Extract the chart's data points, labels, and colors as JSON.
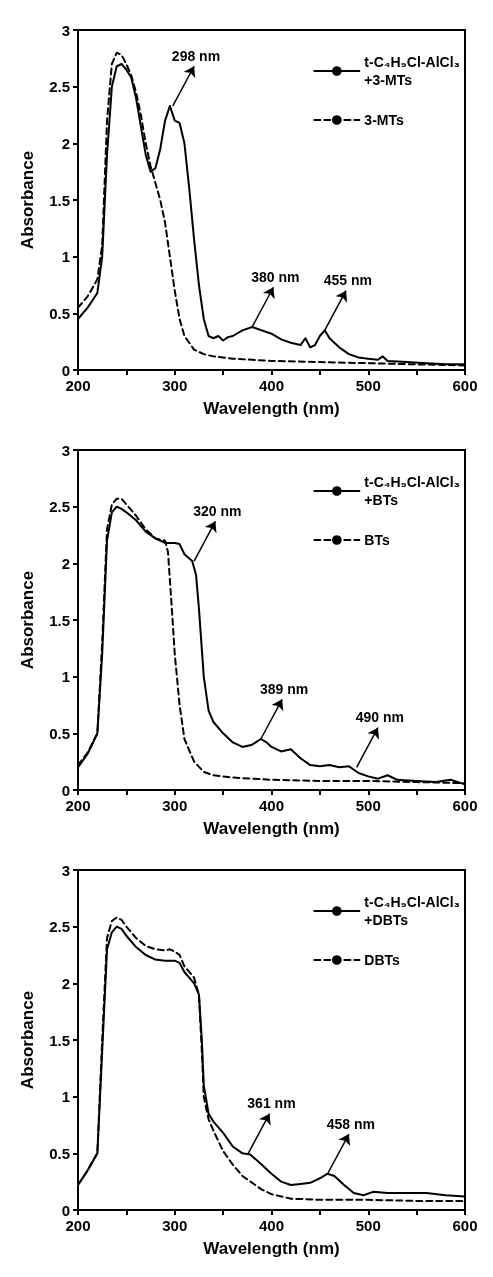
{
  "chart_data": [
    {
      "type": "line",
      "xlabel": "Wavelength (nm)",
      "ylabel": "Absorbance",
      "xlim": [
        200,
        600
      ],
      "ylim": [
        0,
        3
      ],
      "xticks": [
        200,
        {
          "value": 250,
          "label": null
        },
        300,
        {
          "value": 350,
          "label": null
        },
        400,
        {
          "value": 450,
          "label": null
        },
        500,
        {
          "value": 550,
          "label": null
        },
        600
      ],
      "yticks": [
        0,
        0.5,
        1,
        1.5,
        2,
        2.5,
        3
      ],
      "grid": false,
      "legend": "top right",
      "marker": "none",
      "series": [
        {
          "name": "t-C₄H₉Cl-AlCl₃ +3-MTs",
          "color": "#000000",
          "line_style": "solid",
          "x": [
            200,
            210,
            220,
            225,
            230,
            235,
            240,
            245,
            250,
            255,
            260,
            265,
            270,
            275,
            280,
            285,
            290,
            295,
            300,
            305,
            310,
            315,
            320,
            325,
            330,
            335,
            340,
            345,
            350,
            355,
            360,
            370,
            380,
            390,
            400,
            410,
            420,
            430,
            435,
            440,
            445,
            450,
            455,
            460,
            470,
            480,
            490,
            500,
            510,
            515,
            520,
            540,
            560,
            580,
            600
          ],
          "values": [
            0.45,
            0.55,
            0.68,
            1.0,
            1.9,
            2.5,
            2.68,
            2.7,
            2.65,
            2.58,
            2.4,
            2.15,
            1.9,
            1.75,
            1.78,
            1.95,
            2.2,
            2.33,
            2.2,
            2.18,
            2.0,
            1.6,
            1.15,
            0.75,
            0.45,
            0.3,
            0.28,
            0.3,
            0.26,
            0.29,
            0.3,
            0.35,
            0.38,
            0.35,
            0.32,
            0.27,
            0.24,
            0.22,
            0.28,
            0.2,
            0.22,
            0.3,
            0.35,
            0.28,
            0.2,
            0.14,
            0.11,
            0.1,
            0.09,
            0.12,
            0.08,
            0.07,
            0.06,
            0.05,
            0.05
          ]
        },
        {
          "name": "3-MTs",
          "color": "#000000",
          "line_style": "dashed",
          "x": [
            200,
            210,
            220,
            225,
            230,
            235,
            240,
            245,
            250,
            255,
            260,
            265,
            270,
            275,
            280,
            285,
            290,
            295,
            300,
            305,
            310,
            320,
            330,
            340,
            360,
            380,
            400,
            450,
            500,
            550,
            600
          ],
          "values": [
            0.55,
            0.65,
            0.8,
            1.1,
            2.2,
            2.7,
            2.8,
            2.78,
            2.7,
            2.6,
            2.45,
            2.25,
            2.0,
            1.8,
            1.65,
            1.5,
            1.3,
            1.0,
            0.7,
            0.45,
            0.3,
            0.18,
            0.14,
            0.12,
            0.1,
            0.09,
            0.08,
            0.07,
            0.06,
            0.05,
            0.04
          ]
        }
      ],
      "annotations": [
        {
          "text": "298 nm",
          "x": 298,
          "y": 2.33
        },
        {
          "text": "380 nm",
          "x": 380,
          "y": 0.38
        },
        {
          "text": "455 nm",
          "x": 455,
          "y": 0.35
        }
      ]
    },
    {
      "type": "line",
      "xlabel": "Wavelength (nm)",
      "ylabel": "Absorbance",
      "xlim": [
        200,
        600
      ],
      "ylim": [
        0,
        3
      ],
      "xticks": [
        200,
        {
          "value": 250,
          "label": null
        },
        300,
        {
          "value": 350,
          "label": null
        },
        400,
        {
          "value": 450,
          "label": null
        },
        500,
        {
          "value": 550,
          "label": null
        },
        600
      ],
      "yticks": [
        0,
        0.5,
        1,
        1.5,
        2,
        2.5,
        3
      ],
      "grid": false,
      "legend": "top right",
      "marker": "none",
      "series": [
        {
          "name": "t-C₄H₉Cl-AlCl₃ +BTs",
          "color": "#000000",
          "line_style": "solid",
          "x": [
            200,
            210,
            220,
            225,
            230,
            235,
            240,
            245,
            250,
            260,
            270,
            280,
            290,
            300,
            305,
            310,
            318,
            322,
            325,
            330,
            335,
            340,
            350,
            360,
            370,
            380,
            389,
            395,
            400,
            410,
            420,
            430,
            440,
            450,
            460,
            470,
            480,
            490,
            500,
            510,
            520,
            530,
            550,
            570,
            585,
            600
          ],
          "values": [
            0.2,
            0.32,
            0.5,
            1.2,
            2.2,
            2.45,
            2.5,
            2.48,
            2.45,
            2.38,
            2.28,
            2.22,
            2.18,
            2.18,
            2.17,
            2.08,
            2.02,
            1.9,
            1.6,
            1.0,
            0.7,
            0.6,
            0.5,
            0.42,
            0.38,
            0.4,
            0.45,
            0.42,
            0.38,
            0.34,
            0.36,
            0.28,
            0.22,
            0.21,
            0.22,
            0.2,
            0.21,
            0.15,
            0.12,
            0.1,
            0.13,
            0.09,
            0.08,
            0.07,
            0.09,
            0.05
          ]
        },
        {
          "name": "BTs",
          "color": "#000000",
          "line_style": "dashed",
          "x": [
            200,
            210,
            220,
            225,
            230,
            235,
            240,
            245,
            250,
            260,
            270,
            280,
            290,
            293,
            297,
            300,
            305,
            310,
            320,
            330,
            340,
            360,
            400,
            450,
            500,
            550,
            600
          ],
          "values": [
            0.22,
            0.33,
            0.5,
            1.3,
            2.3,
            2.52,
            2.57,
            2.57,
            2.52,
            2.42,
            2.3,
            2.22,
            2.2,
            2.1,
            1.6,
            1.2,
            0.75,
            0.45,
            0.25,
            0.16,
            0.13,
            0.11,
            0.09,
            0.08,
            0.08,
            0.07,
            0.06
          ]
        }
      ],
      "annotations": [
        {
          "text": "320 nm",
          "x": 320,
          "y": 2.02
        },
        {
          "text": "389 nm",
          "x": 389,
          "y": 0.45
        },
        {
          "text": "490 nm",
          "x": 488,
          "y": 0.2
        }
      ]
    },
    {
      "type": "line",
      "xlabel": "Wavelength (nm)",
      "ylabel": "Absorbance",
      "xlim": [
        200,
        600
      ],
      "ylim": [
        0,
        3
      ],
      "xticks": [
        200,
        {
          "value": 250,
          "label": null
        },
        300,
        {
          "value": 350,
          "label": null
        },
        400,
        {
          "value": 450,
          "label": null
        },
        500,
        {
          "value": 550,
          "label": null
        },
        600
      ],
      "yticks": [
        0,
        0.5,
        1,
        1.5,
        2,
        2.5,
        3
      ],
      "grid": false,
      "legend": "top right",
      "marker": "none",
      "series": [
        {
          "name": "t-C₄H₉Cl-AlCl₃ +DBTs",
          "color": "#000000",
          "line_style": "solid",
          "x": [
            200,
            210,
            220,
            225,
            230,
            235,
            240,
            245,
            250,
            260,
            270,
            280,
            290,
            300,
            305,
            310,
            320,
            325,
            328,
            330,
            335,
            340,
            350,
            360,
            370,
            378,
            390,
            400,
            410,
            420,
            430,
            440,
            450,
            458,
            465,
            475,
            485,
            495,
            505,
            520,
            560,
            580,
            600
          ],
          "values": [
            0.22,
            0.35,
            0.5,
            1.4,
            2.3,
            2.45,
            2.5,
            2.48,
            2.42,
            2.32,
            2.25,
            2.21,
            2.2,
            2.2,
            2.18,
            2.1,
            2.0,
            1.9,
            1.5,
            1.1,
            0.85,
            0.78,
            0.68,
            0.56,
            0.5,
            0.49,
            0.4,
            0.32,
            0.25,
            0.22,
            0.23,
            0.24,
            0.28,
            0.32,
            0.3,
            0.22,
            0.15,
            0.13,
            0.16,
            0.15,
            0.15,
            0.13,
            0.12
          ]
        },
        {
          "name": "DBTs",
          "color": "#000000",
          "line_style": "dashed",
          "x": [
            200,
            210,
            220,
            225,
            230,
            235,
            240,
            245,
            250,
            260,
            270,
            280,
            290,
            295,
            300,
            305,
            310,
            320,
            325,
            328,
            330,
            335,
            340,
            350,
            360,
            370,
            380,
            390,
            400,
            420,
            450,
            500,
            550,
            600
          ],
          "values": [
            0.22,
            0.35,
            0.5,
            1.5,
            2.4,
            2.55,
            2.58,
            2.56,
            2.5,
            2.4,
            2.33,
            2.3,
            2.29,
            2.3,
            2.28,
            2.25,
            2.15,
            2.05,
            1.9,
            1.4,
            1.0,
            0.8,
            0.7,
            0.52,
            0.4,
            0.3,
            0.24,
            0.18,
            0.14,
            0.1,
            0.09,
            0.09,
            0.08,
            0.08
          ]
        }
      ],
      "annotations": [
        {
          "text": "361 nm",
          "x": 376,
          "y": 0.5
        },
        {
          "text": "458 nm",
          "x": 458,
          "y": 0.32
        }
      ]
    }
  ]
}
